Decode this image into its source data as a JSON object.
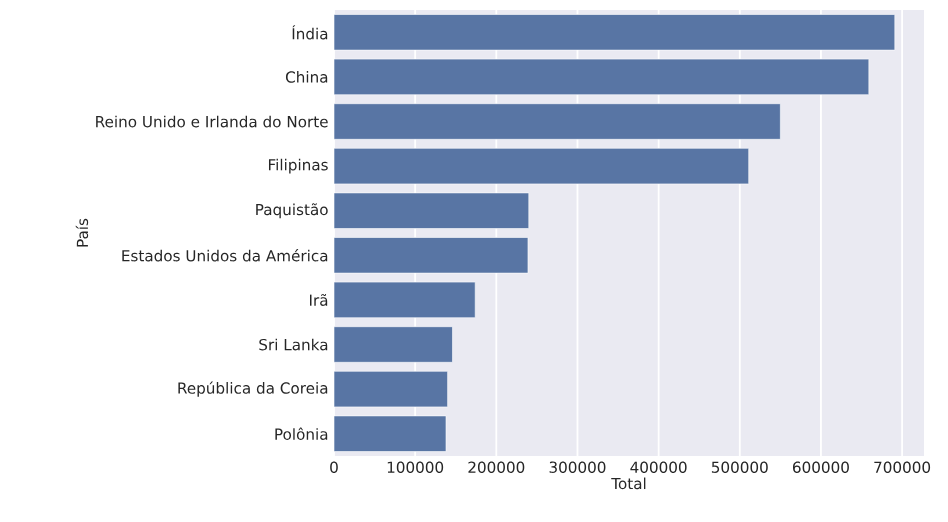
{
  "chart_data": {
    "type": "bar",
    "orientation": "horizontal",
    "xlabel": "Total",
    "ylabel": "País",
    "categories": [
      "Índia",
      "China",
      "Reino Unido e Irlanda do Norte",
      "Filipinas",
      "Paquistão",
      "Estados Unidos da América",
      "Irã",
      "Sri Lanka",
      "República da Coreia",
      "Polônia"
    ],
    "values": [
      691000,
      659000,
      550000,
      511000,
      240000,
      239000,
      174000,
      146000,
      140000,
      138000
    ],
    "color": "#5875a4",
    "xlim": [
      0,
      727000
    ],
    "xticks": [
      0,
      100000,
      200000,
      300000,
      400000,
      500000,
      600000,
      700000
    ],
    "grid": "x"
  }
}
